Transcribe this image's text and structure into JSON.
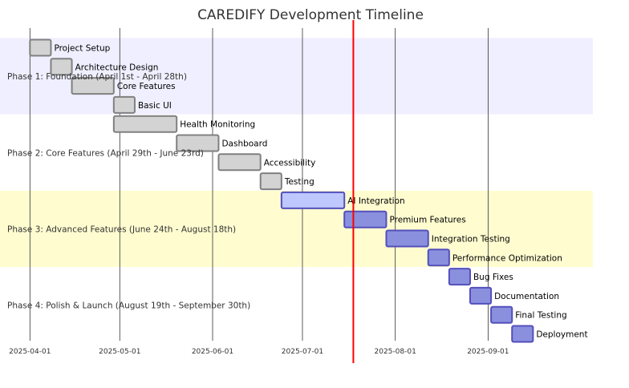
{
  "chart_data": {
    "type": "gantt",
    "title": "CAREDIFY Development Timeline",
    "today": "2025-07-18",
    "x_ticks": [
      "2025-04-01",
      "2025-05-01",
      "2025-06-01",
      "2025-07-01",
      "2025-08-01",
      "2025-09-01"
    ],
    "x_range": [
      "2025-03-22",
      "2025-10-06"
    ],
    "sections": [
      {
        "name": "Phase 1: Foundation (April 1st - April 28th)",
        "color": "#efefff"
      },
      {
        "name": "Phase 2: Core Features (April 29th - June 23rd)",
        "color": "#ffffff"
      },
      {
        "name": "Phase 3: Advanced Features (June 24th - August 18th)",
        "color": "#fffdd0"
      },
      {
        "name": "Phase 4: Polish & Launch (August 19th - September 30th)",
        "color": "#ffffff"
      }
    ],
    "tasks": [
      {
        "name": "Project Setup",
        "section": 0,
        "start": "2025-04-01",
        "end": "2025-04-08",
        "status": "done"
      },
      {
        "name": "Architecture Design",
        "section": 0,
        "start": "2025-04-08",
        "end": "2025-04-15",
        "status": "done"
      },
      {
        "name": "Core Features",
        "section": 0,
        "start": "2025-04-15",
        "end": "2025-04-29",
        "status": "done"
      },
      {
        "name": "Basic UI",
        "section": 0,
        "start": "2025-04-29",
        "end": "2025-05-06",
        "status": "done"
      },
      {
        "name": "Health Monitoring",
        "section": 1,
        "start": "2025-04-29",
        "end": "2025-05-20",
        "status": "done"
      },
      {
        "name": "Dashboard",
        "section": 1,
        "start": "2025-05-20",
        "end": "2025-06-03",
        "status": "done"
      },
      {
        "name": "Accessibility",
        "section": 1,
        "start": "2025-06-03",
        "end": "2025-06-17",
        "status": "done"
      },
      {
        "name": "Testing",
        "section": 1,
        "start": "2025-06-17",
        "end": "2025-06-24",
        "status": "done"
      },
      {
        "name": "AI Integration",
        "section": 2,
        "start": "2025-06-24",
        "end": "2025-07-15",
        "status": "active"
      },
      {
        "name": "Premium Features",
        "section": 2,
        "start": "2025-07-15",
        "end": "2025-07-29",
        "status": "planned"
      },
      {
        "name": "Integration Testing",
        "section": 2,
        "start": "2025-07-29",
        "end": "2025-08-12",
        "status": "planned"
      },
      {
        "name": "Performance Optimization",
        "section": 2,
        "start": "2025-08-12",
        "end": "2025-08-19",
        "status": "planned"
      },
      {
        "name": "Bug Fixes",
        "section": 3,
        "start": "2025-08-19",
        "end": "2025-08-26",
        "status": "planned"
      },
      {
        "name": "Documentation",
        "section": 3,
        "start": "2025-08-26",
        "end": "2025-09-02",
        "status": "planned"
      },
      {
        "name": "Final Testing",
        "section": 3,
        "start": "2025-09-02",
        "end": "2025-09-09",
        "status": "planned"
      },
      {
        "name": "Deployment",
        "section": 3,
        "start": "2025-09-09",
        "end": "2025-09-16",
        "status": "planned"
      }
    ],
    "status_colors": {
      "done": {
        "fill": "#d3d3d3",
        "stroke": "#808080"
      },
      "active": {
        "fill": "#bfc7ff",
        "stroke": "#534fbc"
      },
      "planned": {
        "fill": "#8a90dd",
        "stroke": "#534fbc"
      }
    },
    "today_line_color": "#ff0000",
    "grid": true
  }
}
